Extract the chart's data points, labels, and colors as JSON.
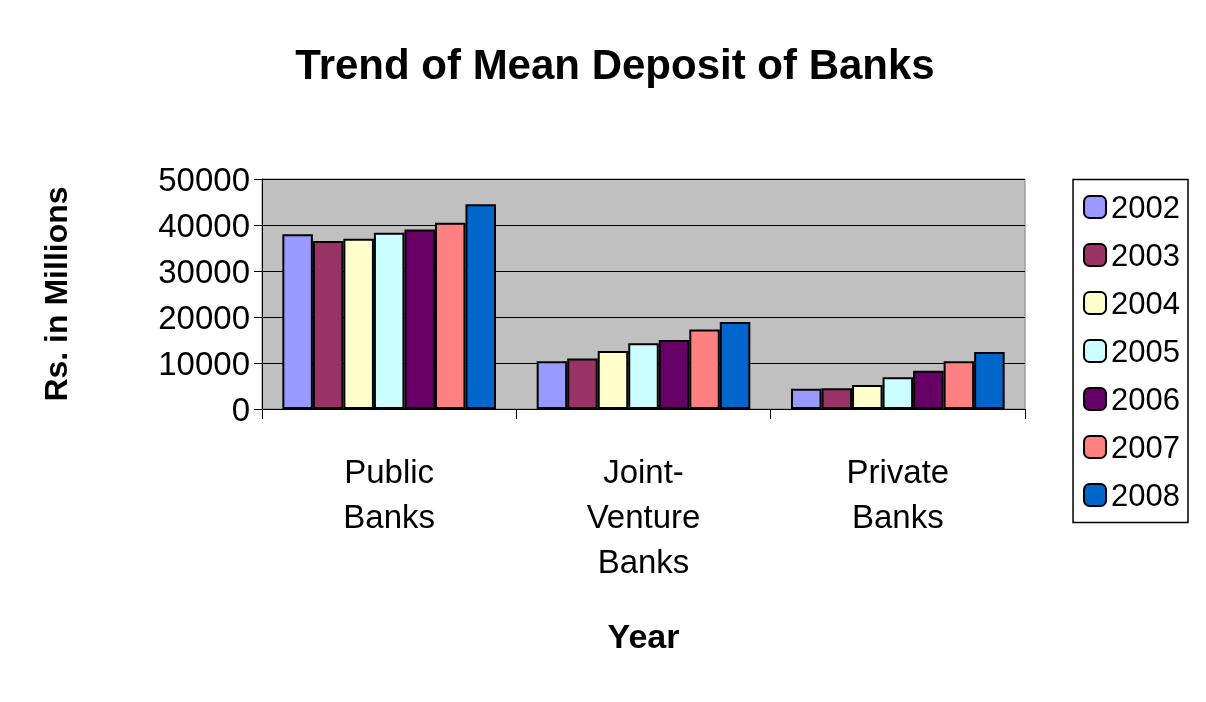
{
  "chart_data": {
    "type": "bar",
    "title": "Trend of Mean Deposit of Banks",
    "xlabel": "Year",
    "ylabel": "Rs. in Millions",
    "categories": [
      "Public Banks",
      "Joint-Venture Banks",
      "Private Banks"
    ],
    "series": [
      {
        "name": "2002",
        "color": "#9999ff",
        "values": [
          38000,
          10400,
          4400
        ]
      },
      {
        "name": "2003",
        "color": "#993366",
        "values": [
          36500,
          11000,
          4500
        ]
      },
      {
        "name": "2004",
        "color": "#ffffcc",
        "values": [
          37000,
          12600,
          5200
        ]
      },
      {
        "name": "2005",
        "color": "#ccffff",
        "values": [
          38300,
          14300,
          6900
        ]
      },
      {
        "name": "2006",
        "color": "#660066",
        "values": [
          39000,
          15000,
          8300
        ]
      },
      {
        "name": "2007",
        "color": "#ff8080",
        "values": [
          40500,
          17300,
          10400
        ]
      },
      {
        "name": "2008",
        "color": "#0066cc",
        "values": [
          44500,
          18900,
          12400
        ]
      }
    ],
    "ylim": [
      0,
      50000
    ],
    "yticks": [
      0,
      10000,
      20000,
      30000,
      40000,
      50000
    ],
    "grid": "y",
    "legend": "right"
  }
}
